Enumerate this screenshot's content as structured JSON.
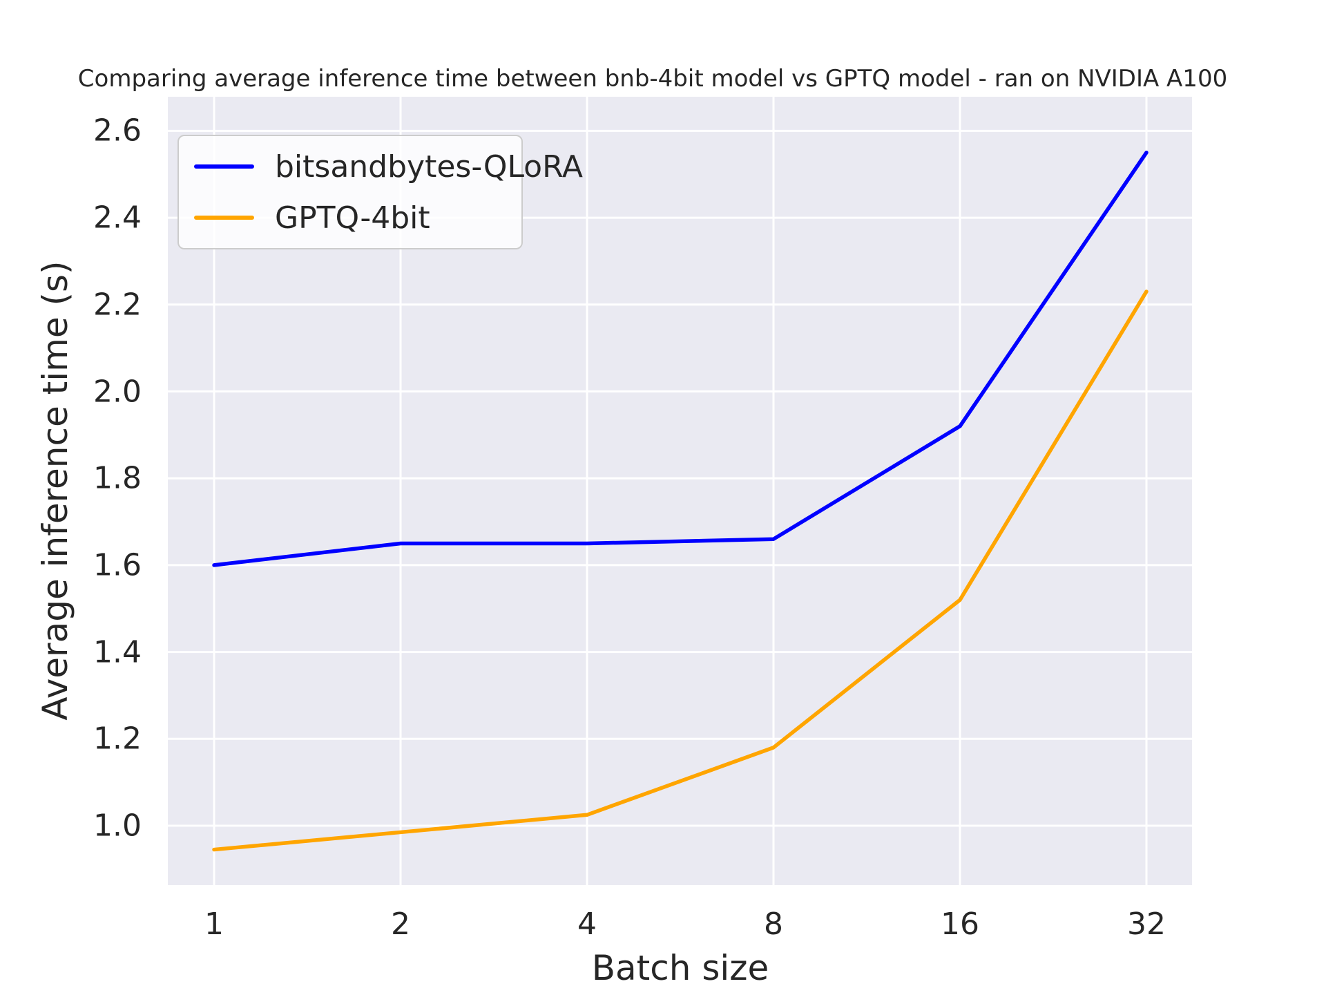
{
  "figure": {
    "background": "#ffffff"
  },
  "chart_data": {
    "type": "line",
    "title": "Comparing average inference time between bnb-4bit model vs GPTQ model - ran on NVIDIA A100",
    "xlabel": "Batch size",
    "ylabel": "Average inference time (s)",
    "categories": [
      1,
      2,
      4,
      8,
      16,
      32
    ],
    "x_ticklabels": [
      "1",
      "2",
      "4",
      "8",
      "16",
      "32"
    ],
    "y_ticks": [
      1.0,
      1.2,
      1.4,
      1.6,
      1.8,
      2.0,
      2.2,
      2.4,
      2.6
    ],
    "y_ticklabels": [
      "1.0",
      "1.2",
      "1.4",
      "1.6",
      "1.8",
      "2.0",
      "2.2",
      "2.4",
      "2.6"
    ],
    "ylim": [
      0.865,
      2.68
    ],
    "series": [
      {
        "name": "bitsandbytes-QLoRA",
        "color": "#0000ff",
        "values": [
          1.6,
          1.65,
          1.65,
          1.66,
          1.92,
          2.55
        ]
      },
      {
        "name": "GPTQ-4bit",
        "color": "#ffa500",
        "values": [
          0.945,
          0.985,
          1.025,
          1.18,
          1.52,
          2.23
        ]
      }
    ],
    "grid": true,
    "grid_color": "#ffffff",
    "plot_bg": "#eaeaf2",
    "text_color": "#262626",
    "legend_position": "upper left"
  }
}
